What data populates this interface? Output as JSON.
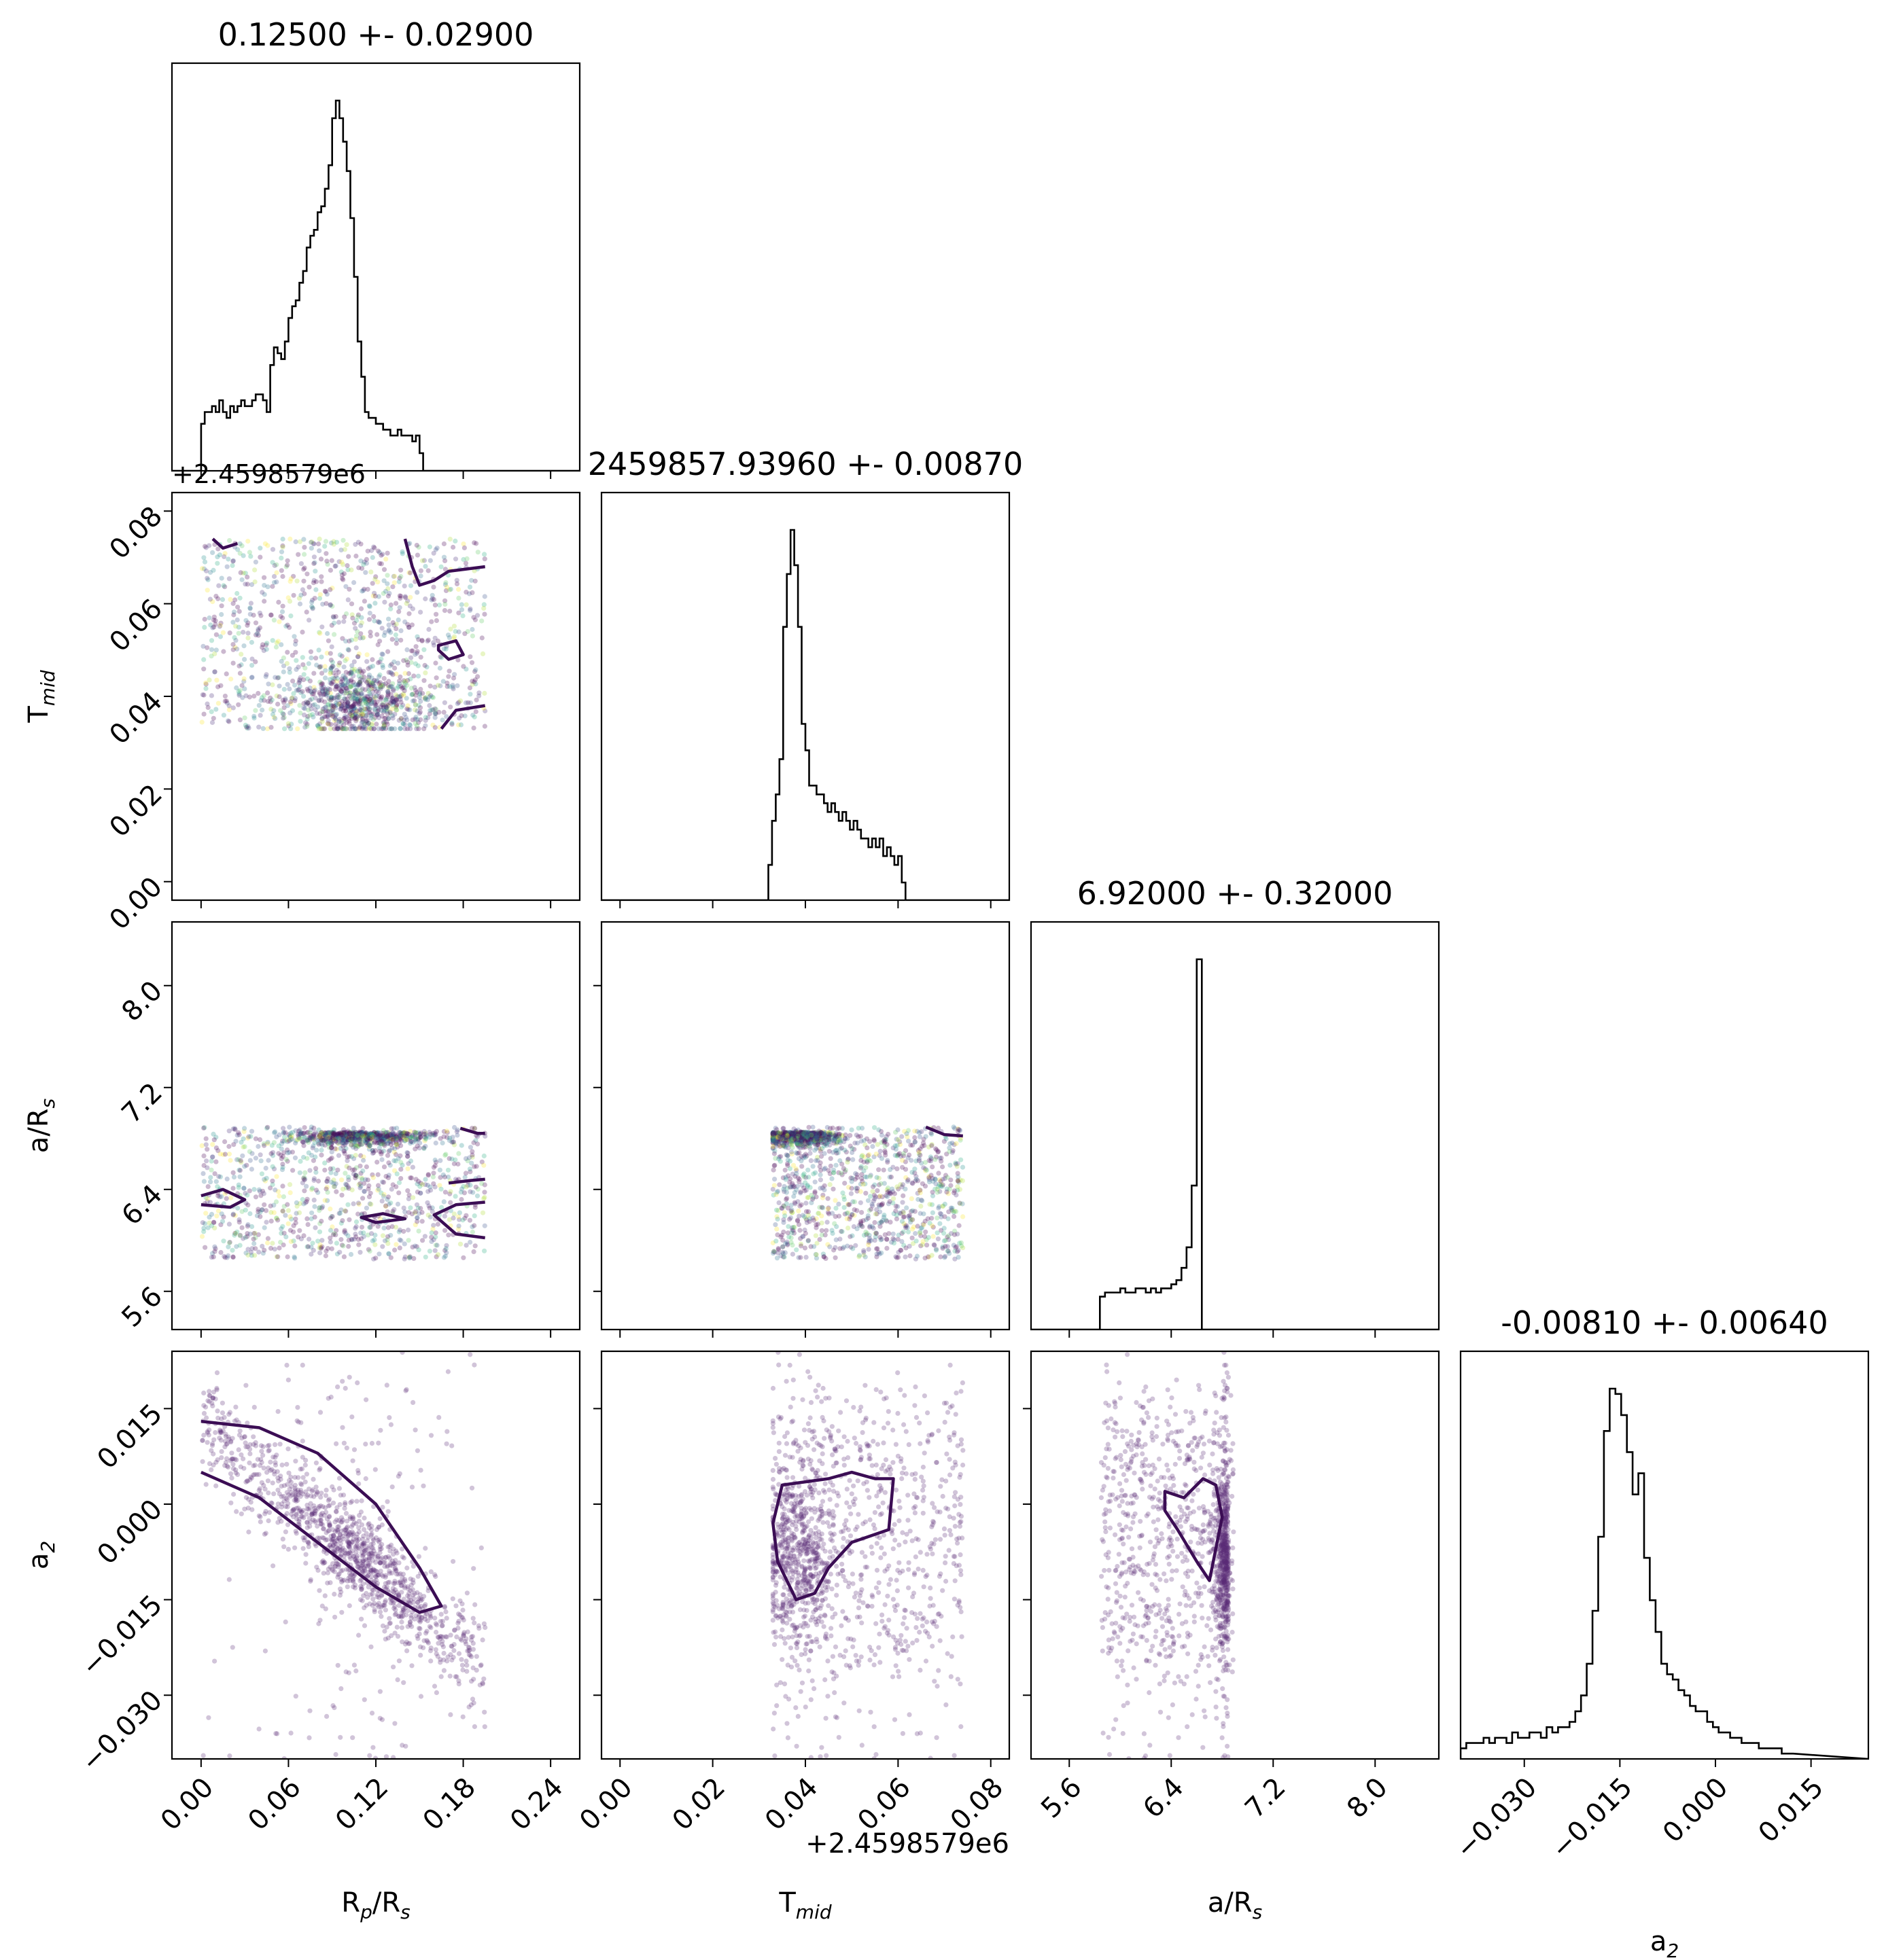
{
  "chart_data": {
    "type": "corner",
    "parameters": [
      {
        "key": "rp",
        "label": "R",
        "label_sub": "p",
        "label_suffix": "/R",
        "label_suffix_sub": "s",
        "range": [
          -0.02,
          0.26
        ],
        "ticks": [
          "0.00",
          "0.06",
          "0.12",
          "0.18",
          "0.24"
        ],
        "title": "0.12500 +- 0.02900"
      },
      {
        "key": "tmid",
        "label": "T",
        "label_sub": "mid",
        "label_suffix": "",
        "label_suffix_sub": "",
        "range": [
          -0.004,
          0.084
        ],
        "ticks": [
          "0.00",
          "0.02",
          "0.04",
          "0.06",
          "0.08"
        ],
        "title": "2459857.93960 +- 0.00870",
        "offset_text": "+2.4598579e6"
      },
      {
        "key": "ars",
        "label": "a/R",
        "label_sub": "s",
        "label_suffix": "",
        "label_suffix_sub": "",
        "range": [
          5.3,
          8.5
        ],
        "ticks": [
          "5.6",
          "6.4",
          "7.2",
          "8.0"
        ],
        "title": "6.92000 +- 0.32000"
      },
      {
        "key": "a2",
        "label": "a",
        "label_sub": "2",
        "label_suffix": "",
        "label_suffix_sub": "",
        "range": [
          -0.04,
          0.024
        ],
        "ticks": [
          "−0.030",
          "−0.015",
          "0.000",
          "0.015"
        ],
        "title": "-0.00810 +- 0.00640"
      }
    ],
    "histograms": {
      "rp": {
        "bin_start": 0.0,
        "bin_width": 0.0025,
        "counts": [
          8,
          10,
          10,
          11,
          10,
          12,
          10,
          9,
          11,
          10,
          11,
          12,
          11,
          11,
          12,
          13,
          13,
          12,
          10,
          18,
          21,
          20,
          19,
          22,
          26,
          28,
          29,
          32,
          34,
          38,
          40,
          41,
          44,
          45,
          48,
          52,
          60,
          63,
          60,
          56,
          51,
          43,
          33,
          22,
          16,
          10,
          9,
          9,
          8,
          8,
          7,
          7,
          6,
          6,
          7,
          6,
          6,
          6,
          5,
          6,
          3,
          0
        ]
      },
      "tmid": {
        "bin_start": 0.032,
        "bin_width": 0.0008,
        "counts": [
          4,
          9,
          12,
          16,
          31,
          37,
          42,
          38,
          31,
          20,
          17,
          13,
          13,
          12,
          12,
          11,
          10,
          11,
          10,
          9,
          10,
          9,
          8,
          9,
          8,
          7,
          7,
          6,
          7,
          6,
          7,
          5,
          6,
          5,
          4,
          5,
          2,
          0
        ]
      },
      "ars": {
        "bin_start": 5.84,
        "bin_width": 0.04,
        "counts": [
          8,
          9,
          9,
          9,
          10,
          9,
          9,
          10,
          10,
          9,
          10,
          9,
          10,
          10,
          11,
          12,
          15,
          20,
          35,
          90,
          0
        ]
      },
      "a2": {
        "bin_start": -0.04,
        "bin_width": 0.0009,
        "counts": [
          2,
          3,
          3,
          3,
          4,
          3,
          4,
          4,
          3,
          5,
          4,
          4,
          5,
          5,
          4,
          6,
          5,
          6,
          6,
          7,
          9,
          12,
          18,
          28,
          42,
          62,
          70,
          69,
          65,
          58,
          50,
          54,
          38,
          30,
          24,
          18,
          16,
          15,
          13,
          12,
          10,
          9,
          9,
          7,
          6,
          5,
          5,
          4,
          4,
          3,
          3,
          3,
          2,
          2,
          2,
          2,
          1,
          1
        ]
      }
    },
    "scatter": {
      "colormap": "viridis",
      "point_alpha": 0.28,
      "contour_color": "#3b0d54"
    }
  }
}
